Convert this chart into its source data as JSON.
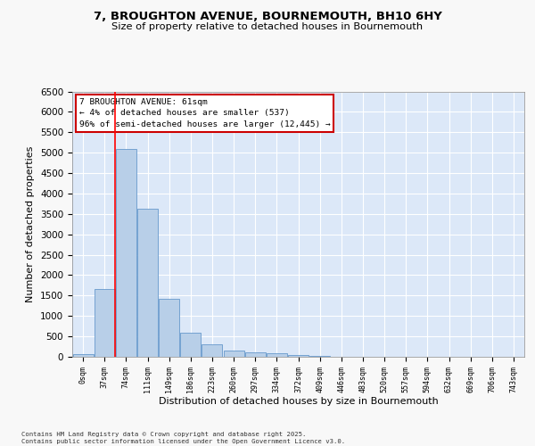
{
  "title_line1": "7, BROUGHTON AVENUE, BOURNEMOUTH, BH10 6HY",
  "title_line2": "Size of property relative to detached houses in Bournemouth",
  "xlabel": "Distribution of detached houses by size in Bournemouth",
  "ylabel": "Number of detached properties",
  "bin_labels": [
    "0sqm",
    "37sqm",
    "74sqm",
    "111sqm",
    "149sqm",
    "186sqm",
    "223sqm",
    "260sqm",
    "297sqm",
    "334sqm",
    "372sqm",
    "409sqm",
    "446sqm",
    "483sqm",
    "520sqm",
    "557sqm",
    "594sqm",
    "632sqm",
    "669sqm",
    "706sqm",
    "743sqm"
  ],
  "bar_values": [
    60,
    1650,
    5100,
    3620,
    1420,
    600,
    300,
    160,
    115,
    80,
    40,
    15,
    5,
    2,
    1,
    0,
    0,
    0,
    0,
    0,
    0
  ],
  "bar_color": "#b8cfe8",
  "bar_edge_color": "#6699cc",
  "red_line_x": 1.5,
  "annotation_text": "7 BROUGHTON AVENUE: 61sqm\n← 4% of detached houses are smaller (537)\n96% of semi-detached houses are larger (12,445) →",
  "ylim_max": 6500,
  "yticks": [
    0,
    500,
    1000,
    1500,
    2000,
    2500,
    3000,
    3500,
    4000,
    4500,
    5000,
    5500,
    6000,
    6500
  ],
  "plot_bg_color": "#dce8f8",
  "fig_bg_color": "#f8f8f8",
  "grid_color": "#ffffff",
  "footer_line1": "Contains HM Land Registry data © Crown copyright and database right 2025.",
  "footer_line2": "Contains public sector information licensed under the Open Government Licence v3.0."
}
